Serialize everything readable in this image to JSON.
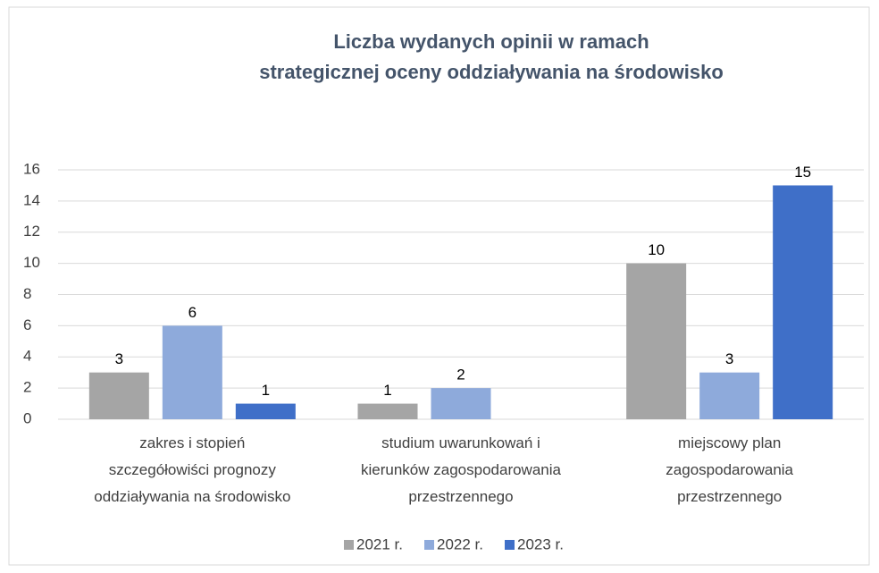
{
  "chart_data": {
    "type": "bar",
    "title": "Liczba wydanych opinii w ramach\nstrategicznej oceny oddziaływania na środowisko",
    "categories": [
      "zakres i stopień\nszczegółowiści prognozy\noddziaływania na środowisko",
      "studium uwarunkowań i\nkierunków zagospodarowania\nprzestrzennego",
      "miejscowy plan\nzagospodarowania\nprzestrzennego"
    ],
    "series": [
      {
        "name": "2021 r.",
        "color": "#a5a5a5",
        "values": [
          3,
          1,
          10
        ]
      },
      {
        "name": "2022 r.",
        "color": "#8eaadb",
        "values": [
          6,
          2,
          3
        ]
      },
      {
        "name": "2023 r.",
        "color": "#3f6fc8",
        "values": [
          1,
          null,
          15
        ]
      }
    ],
    "ylim": [
      0,
      16
    ],
    "yticks": [
      0,
      2,
      4,
      6,
      8,
      10,
      12,
      14,
      16
    ],
    "grid": true,
    "legend": "bottom"
  }
}
